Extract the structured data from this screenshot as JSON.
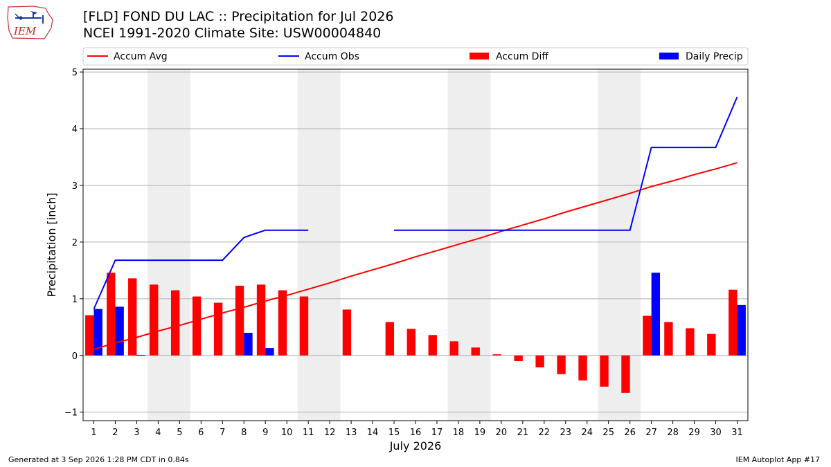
{
  "header": {
    "title_line1": "[FLD] FOND DU LAC :: Precipitation for Jul 2026",
    "title_line2": "NCEI 1991-2020 Climate Site: USW00004840",
    "logo_text": "IEM"
  },
  "footer": {
    "generated": "Generated at 3 Sep 2026 1:28 PM CDT in 0.84s",
    "app": "IEM Autoplot App #17"
  },
  "colors": {
    "accum_avg": "#ff0000",
    "accum_obs": "#0000ff",
    "accum_diff": "#ff0000",
    "daily_precip": "#0000ff",
    "weekend_band": "#eeeeee"
  },
  "chart_data": {
    "type": "bar",
    "xlabel": "July 2026",
    "ylabel": "Precipitation [inch]",
    "ylim": [
      -1.15,
      5.05
    ],
    "xlim": [
      0.5,
      31.5
    ],
    "y_ticks": [
      -1,
      0,
      1,
      2,
      3,
      4,
      5
    ],
    "y_tick_labels": [
      "−1",
      "0",
      "1",
      "2",
      "3",
      "4",
      "5"
    ],
    "days": [
      1,
      2,
      3,
      4,
      5,
      6,
      7,
      8,
      9,
      10,
      11,
      12,
      13,
      14,
      15,
      16,
      17,
      18,
      19,
      20,
      21,
      22,
      23,
      24,
      25,
      26,
      27,
      28,
      29,
      30,
      31
    ],
    "grid": "horizontal",
    "legend_position": "top",
    "weekend_bands": [
      [
        3.5,
        5.5
      ],
      [
        10.5,
        12.5
      ],
      [
        17.5,
        19.5
      ],
      [
        24.5,
        26.5
      ]
    ],
    "series": [
      {
        "name": "Accum Avg",
        "kind": "line",
        "x": [
          1,
          2,
          3,
          4,
          5,
          6,
          7,
          8,
          9,
          10,
          11,
          12,
          13,
          14,
          15,
          16,
          17,
          18,
          19,
          20,
          21,
          22,
          23,
          24,
          25,
          26,
          27,
          28,
          29,
          30,
          31
        ],
        "values": [
          0.11,
          0.22,
          0.32,
          0.43,
          0.53,
          0.64,
          0.75,
          0.85,
          0.96,
          1.06,
          1.17,
          1.28,
          1.4,
          1.51,
          1.62,
          1.74,
          1.85,
          1.96,
          2.07,
          2.19,
          2.3,
          2.41,
          2.53,
          2.64,
          2.75,
          2.86,
          2.98,
          3.08,
          3.19,
          3.29,
          3.4
        ]
      },
      {
        "name": "Accum Obs",
        "kind": "line",
        "x": [
          1,
          2,
          3,
          4,
          5,
          6,
          7,
          8,
          9,
          10,
          11,
          12,
          13,
          14,
          15,
          16,
          17,
          18,
          19,
          20,
          21,
          22,
          23,
          24,
          25,
          26,
          27,
          28,
          29,
          30,
          31
        ],
        "values": [
          0.82,
          1.68,
          1.68,
          1.68,
          1.68,
          1.68,
          1.68,
          2.08,
          2.21,
          2.21,
          2.21,
          null,
          null,
          null,
          2.21,
          2.21,
          2.21,
          2.21,
          2.21,
          2.21,
          2.21,
          2.21,
          2.21,
          2.21,
          2.21,
          2.21,
          3.67,
          3.67,
          3.67,
          3.67,
          4.56
        ]
      },
      {
        "name": "Accum Diff",
        "kind": "bar",
        "x": [
          1,
          2,
          3,
          4,
          5,
          6,
          7,
          8,
          9,
          10,
          11,
          13,
          15,
          16,
          17,
          18,
          19,
          20,
          21,
          22,
          23,
          24,
          25,
          26,
          27,
          28,
          29,
          30,
          31
        ],
        "values": [
          0.71,
          1.46,
          1.36,
          1.25,
          1.15,
          1.04,
          0.93,
          1.23,
          1.25,
          1.15,
          1.04,
          0.81,
          0.59,
          0.47,
          0.36,
          0.25,
          0.14,
          0.02,
          -0.1,
          -0.21,
          -0.33,
          -0.44,
          -0.55,
          -0.66,
          0.7,
          0.59,
          0.48,
          0.38,
          1.16
        ]
      },
      {
        "name": "Daily Precip",
        "kind": "bar",
        "x": [
          1,
          2,
          3,
          8,
          9,
          27,
          31
        ],
        "values": [
          0.82,
          0.86,
          0.01,
          0.4,
          0.13,
          1.46,
          0.89
        ]
      }
    ]
  }
}
